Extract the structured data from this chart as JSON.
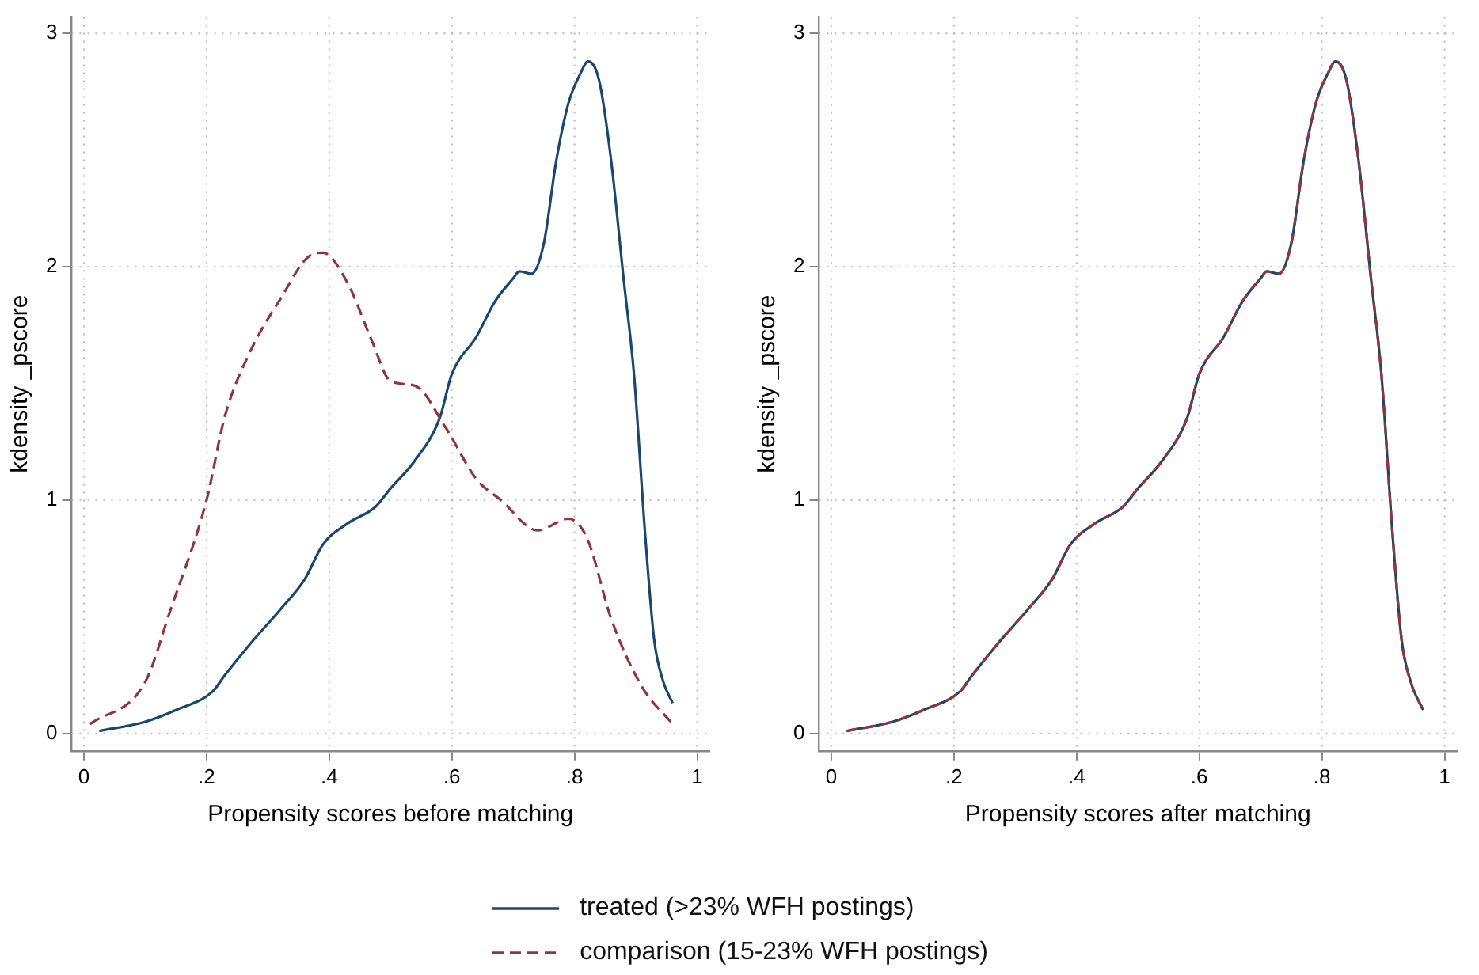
{
  "chart_data": [
    {
      "type": "line",
      "xlabel": "Propensity scores before matching",
      "ylabel": "kdensity _pscore",
      "xlim": [
        -0.02,
        1.02
      ],
      "ylim": [
        -0.075,
        3.07
      ],
      "xticks": [
        {
          "value": 0,
          "label": "0"
        },
        {
          "value": 0.2,
          "label": ".2"
        },
        {
          "value": 0.4,
          "label": ".4"
        },
        {
          "value": 0.6,
          "label": ".6"
        },
        {
          "value": 0.8,
          "label": ".8"
        },
        1
      ],
      "yticks": [
        {
          "value": 0,
          "label": "0"
        },
        1,
        2,
        3
      ],
      "grid": true,
      "legend": "bottom",
      "marker": "none",
      "series": [
        {
          "name": "treated (>23% WFH postings)",
          "color": "#1a476f",
          "line_style": "solid",
          "x": [
            0.025,
            0.1,
            0.15,
            0.21,
            0.23,
            0.27,
            0.32,
            0.36,
            0.39,
            0.43,
            0.475,
            0.5,
            0.54,
            0.58,
            0.6,
            0.64,
            0.67,
            0.7,
            0.71,
            0.73,
            0.75,
            0.77,
            0.79,
            0.81,
            0.822,
            0.84,
            0.86,
            0.88,
            0.897,
            0.915,
            0.93,
            0.945,
            0.96
          ],
          "values": [
            0.01,
            0.05,
            0.1,
            0.18,
            0.25,
            0.38,
            0.53,
            0.66,
            0.81,
            0.9,
            0.97,
            1.05,
            1.17,
            1.35,
            1.54,
            1.7,
            1.85,
            1.95,
            1.98,
            1.97,
            2.1,
            2.45,
            2.7,
            2.83,
            2.88,
            2.8,
            2.45,
            1.95,
            1.54,
            0.86,
            0.4,
            0.22,
            0.13
          ]
        },
        {
          "name": "comparison (15-23% WFH postings)",
          "color": "#90353b",
          "line_style": "dashed",
          "x": [
            0.01,
            0.1,
            0.14,
            0.2,
            0.23,
            0.27,
            0.32,
            0.37,
            0.39,
            0.43,
            0.47,
            0.5,
            0.54,
            0.59,
            0.64,
            0.68,
            0.74,
            0.79,
            0.82,
            0.86,
            0.91,
            0.96
          ],
          "values": [
            0.04,
            0.22,
            0.52,
            1.0,
            1.36,
            1.63,
            1.86,
            2.05,
            2.06,
            1.93,
            1.68,
            1.51,
            1.49,
            1.31,
            1.09,
            1.0,
            0.87,
            0.92,
            0.84,
            0.49,
            0.2,
            0.04
          ]
        }
      ]
    },
    {
      "type": "line",
      "xlabel": "Propensity scores after matching",
      "ylabel": "kdensity _pscore",
      "xlim": [
        -0.02,
        1.02
      ],
      "ylim": [
        -0.075,
        3.07
      ],
      "xticks": [
        {
          "value": 0,
          "label": "0"
        },
        {
          "value": 0.2,
          "label": ".2"
        },
        {
          "value": 0.4,
          "label": ".4"
        },
        {
          "value": 0.6,
          "label": ".6"
        },
        {
          "value": 0.8,
          "label": ".8"
        },
        1
      ],
      "yticks": [
        {
          "value": 0,
          "label": "0"
        },
        1,
        2,
        3
      ],
      "grid": true,
      "marker": "none",
      "series": [
        {
          "color": "#1a476f",
          "line_style": "solid",
          "x": [
            0.025,
            0.1,
            0.15,
            0.21,
            0.23,
            0.27,
            0.32,
            0.36,
            0.39,
            0.43,
            0.475,
            0.5,
            0.54,
            0.58,
            0.6,
            0.64,
            0.67,
            0.7,
            0.71,
            0.73,
            0.75,
            0.77,
            0.79,
            0.81,
            0.822,
            0.84,
            0.86,
            0.88,
            0.897,
            0.915,
            0.93,
            0.945,
            0.965
          ],
          "values": [
            0.01,
            0.05,
            0.1,
            0.18,
            0.25,
            0.38,
            0.53,
            0.66,
            0.81,
            0.9,
            0.97,
            1.05,
            1.17,
            1.35,
            1.54,
            1.7,
            1.85,
            1.95,
            1.98,
            1.97,
            2.1,
            2.45,
            2.7,
            2.83,
            2.88,
            2.8,
            2.45,
            1.95,
            1.54,
            0.86,
            0.4,
            0.22,
            0.1
          ]
        },
        {
          "color": "#90353b",
          "line_style": "dashed",
          "x": [
            0.025,
            0.1,
            0.15,
            0.21,
            0.23,
            0.27,
            0.32,
            0.36,
            0.39,
            0.43,
            0.475,
            0.5,
            0.54,
            0.58,
            0.6,
            0.64,
            0.67,
            0.7,
            0.71,
            0.73,
            0.75,
            0.77,
            0.79,
            0.81,
            0.822,
            0.84,
            0.86,
            0.88,
            0.897,
            0.915,
            0.93,
            0.945,
            0.965
          ],
          "values": [
            0.01,
            0.05,
            0.1,
            0.18,
            0.25,
            0.38,
            0.53,
            0.66,
            0.81,
            0.9,
            0.97,
            1.05,
            1.17,
            1.35,
            1.54,
            1.7,
            1.85,
            1.95,
            1.98,
            1.97,
            2.1,
            2.45,
            2.7,
            2.83,
            2.88,
            2.8,
            2.45,
            1.95,
            1.54,
            0.86,
            0.4,
            0.22,
            0.1
          ]
        }
      ]
    }
  ]
}
